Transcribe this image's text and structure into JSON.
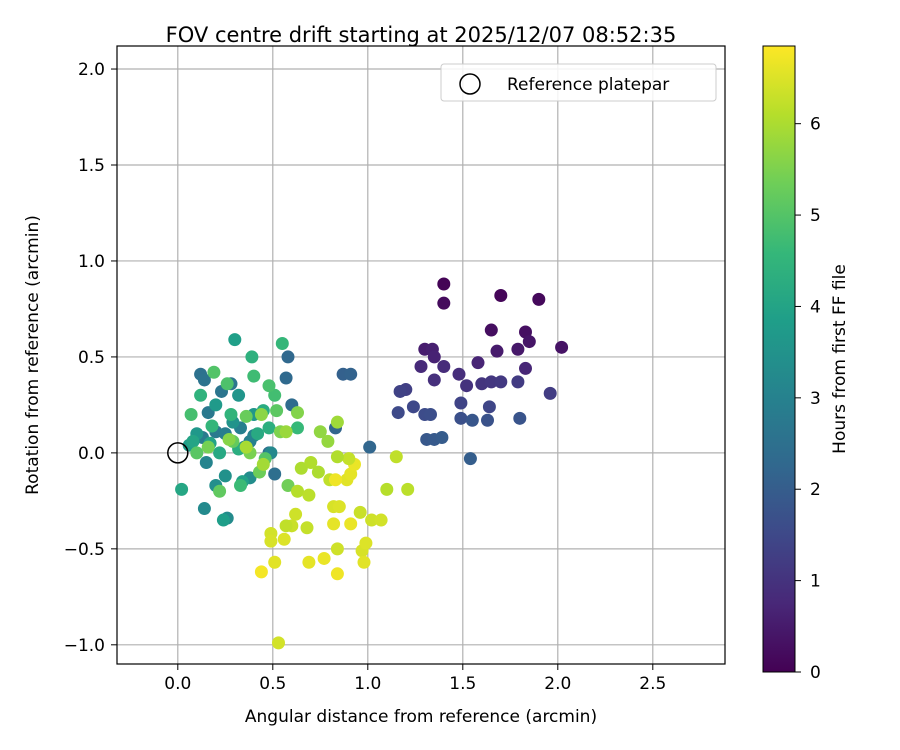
{
  "chart_data": {
    "type": "scatter",
    "title": "FOV centre drift starting at 2025/12/07 08:52:35",
    "xlabel": "Angular distance from reference (arcmin)",
    "ylabel": "Rotation from reference (arcmin)",
    "xlim": [
      -0.32,
      2.88
    ],
    "ylim": [
      -1.1,
      2.12
    ],
    "xticks": [
      0.0,
      0.5,
      1.0,
      1.5,
      2.0,
      2.5
    ],
    "xtick_labels": [
      "0.0",
      "0.5",
      "1.0",
      "1.5",
      "2.0",
      "2.5"
    ],
    "yticks": [
      -1.0,
      -0.5,
      0.0,
      0.5,
      1.0,
      1.5,
      2.0
    ],
    "ytick_labels": [
      "−1.0",
      "−0.5",
      "0.0",
      "0.5",
      "1.0",
      "1.5",
      "2.0"
    ],
    "grid": true,
    "legend": {
      "placement": "top-right",
      "entries": [
        "Reference platepar"
      ]
    },
    "reference_point": {
      "x": 0.0,
      "y": 0.0,
      "label": "Reference platepar"
    },
    "colorbar": {
      "label": "Hours from first FF file",
      "range": [
        0,
        6.85
      ],
      "ticks": [
        0,
        1,
        2,
        3,
        4,
        5,
        6
      ],
      "tick_labels": [
        "0",
        "1",
        "2",
        "3",
        "4",
        "5",
        "6"
      ],
      "colormap": [
        "#440154",
        "#482878",
        "#3e4989",
        "#31688e",
        "#26828e",
        "#1f9e89",
        "#35b779",
        "#6ece58",
        "#b5de2b",
        "#fde725"
      ]
    },
    "series": [
      {
        "name": "FOV centre drift",
        "points": [
          {
            "x": 1.4,
            "y": 0.88,
            "t": 0.05
          },
          {
            "x": 1.7,
            "y": 0.82,
            "t": 0.1
          },
          {
            "x": 1.9,
            "y": 0.8,
            "t": 0.15
          },
          {
            "x": 1.4,
            "y": 0.78,
            "t": 0.2
          },
          {
            "x": 1.65,
            "y": 0.64,
            "t": 0.25
          },
          {
            "x": 1.83,
            "y": 0.63,
            "t": 0.3
          },
          {
            "x": 2.02,
            "y": 0.55,
            "t": 0.35
          },
          {
            "x": 1.85,
            "y": 0.58,
            "t": 0.4
          },
          {
            "x": 1.79,
            "y": 0.54,
            "t": 0.45
          },
          {
            "x": 1.68,
            "y": 0.53,
            "t": 0.5
          },
          {
            "x": 1.3,
            "y": 0.54,
            "t": 0.55
          },
          {
            "x": 1.34,
            "y": 0.54,
            "t": 0.6
          },
          {
            "x": 1.35,
            "y": 0.5,
            "t": 0.65
          },
          {
            "x": 1.58,
            "y": 0.47,
            "t": 0.7
          },
          {
            "x": 1.83,
            "y": 0.44,
            "t": 0.75
          },
          {
            "x": 1.28,
            "y": 0.45,
            "t": 0.8
          },
          {
            "x": 1.4,
            "y": 0.45,
            "t": 0.85
          },
          {
            "x": 1.48,
            "y": 0.41,
            "t": 0.9
          },
          {
            "x": 1.35,
            "y": 0.38,
            "t": 0.95
          },
          {
            "x": 1.52,
            "y": 0.35,
            "t": 1.0
          },
          {
            "x": 1.6,
            "y": 0.36,
            "t": 1.05
          },
          {
            "x": 1.65,
            "y": 0.37,
            "t": 1.1
          },
          {
            "x": 1.7,
            "y": 0.37,
            "t": 1.15
          },
          {
            "x": 1.79,
            "y": 0.37,
            "t": 1.2
          },
          {
            "x": 1.96,
            "y": 0.31,
            "t": 1.25
          },
          {
            "x": 1.2,
            "y": 0.33,
            "t": 1.3
          },
          {
            "x": 1.17,
            "y": 0.32,
            "t": 1.35
          },
          {
            "x": 1.49,
            "y": 0.26,
            "t": 1.4
          },
          {
            "x": 1.64,
            "y": 0.24,
            "t": 1.45
          },
          {
            "x": 1.24,
            "y": 0.24,
            "t": 1.5
          },
          {
            "x": 1.16,
            "y": 0.21,
            "t": 1.55
          },
          {
            "x": 1.3,
            "y": 0.2,
            "t": 1.6
          },
          {
            "x": 1.33,
            "y": 0.2,
            "t": 1.65
          },
          {
            "x": 1.49,
            "y": 0.18,
            "t": 1.7
          },
          {
            "x": 1.63,
            "y": 0.17,
            "t": 1.75
          },
          {
            "x": 1.8,
            "y": 0.18,
            "t": 1.8
          },
          {
            "x": 1.55,
            "y": 0.17,
            "t": 1.85
          },
          {
            "x": 1.31,
            "y": 0.07,
            "t": 1.9
          },
          {
            "x": 1.35,
            "y": 0.07,
            "t": 1.95
          },
          {
            "x": 1.39,
            "y": 0.08,
            "t": 2.0
          },
          {
            "x": 1.54,
            "y": -0.03,
            "t": 2.05
          },
          {
            "x": 0.87,
            "y": 0.41,
            "t": 2.1
          },
          {
            "x": 0.91,
            "y": 0.41,
            "t": 2.15
          },
          {
            "x": 0.83,
            "y": 0.13,
            "t": 2.2
          },
          {
            "x": 1.01,
            "y": 0.03,
            "t": 2.25
          },
          {
            "x": 0.58,
            "y": 0.5,
            "t": 2.3
          },
          {
            "x": 0.57,
            "y": 0.39,
            "t": 2.35
          },
          {
            "x": 0.6,
            "y": 0.25,
            "t": 2.4
          },
          {
            "x": 0.48,
            "y": 0.0,
            "t": 2.45
          },
          {
            "x": 0.51,
            "y": -0.11,
            "t": 2.5
          },
          {
            "x": 0.12,
            "y": 0.41,
            "t": 2.55
          },
          {
            "x": 0.14,
            "y": 0.38,
            "t": 2.6
          },
          {
            "x": 0.23,
            "y": 0.32,
            "t": 2.65
          },
          {
            "x": 0.28,
            "y": 0.36,
            "t": 2.7
          },
          {
            "x": 0.16,
            "y": 0.21,
            "t": 2.75
          },
          {
            "x": 0.2,
            "y": 0.11,
            "t": 2.8
          },
          {
            "x": 0.13,
            "y": 0.08,
            "t": 2.85
          },
          {
            "x": 0.25,
            "y": 0.1,
            "t": 2.9
          },
          {
            "x": 0.33,
            "y": 0.13,
            "t": 2.95
          },
          {
            "x": 0.38,
            "y": 0.06,
            "t": 3.0
          },
          {
            "x": 0.4,
            "y": 0.09,
            "t": 3.05
          },
          {
            "x": 0.15,
            "y": -0.05,
            "t": 3.1
          },
          {
            "x": 0.35,
            "y": 0.03,
            "t": 3.15
          },
          {
            "x": 0.49,
            "y": 0.0,
            "t": 3.2
          },
          {
            "x": 0.14,
            "y": -0.29,
            "t": 3.25
          },
          {
            "x": 0.26,
            "y": -0.34,
            "t": 3.3
          },
          {
            "x": 0.38,
            "y": -0.13,
            "t": 3.35
          },
          {
            "x": 0.2,
            "y": -0.17,
            "t": 3.4
          },
          {
            "x": 0.25,
            "y": -0.12,
            "t": 3.45
          },
          {
            "x": 0.29,
            "y": 0.16,
            "t": 3.5
          },
          {
            "x": 0.32,
            "y": 0.3,
            "t": 3.55
          },
          {
            "x": 0.4,
            "y": 0.2,
            "t": 3.6
          },
          {
            "x": 0.1,
            "y": 0.1,
            "t": 3.65
          },
          {
            "x": 0.2,
            "y": 0.25,
            "t": 3.7
          },
          {
            "x": 0.06,
            "y": 0.04,
            "t": 3.75
          },
          {
            "x": 0.24,
            "y": -0.35,
            "t": 3.8
          },
          {
            "x": 0.3,
            "y": 0.59,
            "t": 3.85
          },
          {
            "x": 0.34,
            "y": -0.15,
            "t": 3.9
          },
          {
            "x": 0.17,
            "y": 0.05,
            "t": 3.95
          },
          {
            "x": 0.08,
            "y": 0.06,
            "t": 4.0
          },
          {
            "x": 0.02,
            "y": -0.19,
            "t": 4.05
          },
          {
            "x": 0.22,
            "y": 0.0,
            "t": 4.1
          },
          {
            "x": 0.42,
            "y": 0.1,
            "t": 4.15
          },
          {
            "x": 0.45,
            "y": 0.22,
            "t": 4.2
          },
          {
            "x": 0.32,
            "y": 0.02,
            "t": 4.25
          },
          {
            "x": 0.48,
            "y": 0.13,
            "t": 4.3
          },
          {
            "x": 0.39,
            "y": 0.5,
            "t": 4.35
          },
          {
            "x": 0.12,
            "y": 0.3,
            "t": 4.4
          },
          {
            "x": 0.28,
            "y": 0.2,
            "t": 4.45
          },
          {
            "x": 0.18,
            "y": 0.14,
            "t": 4.5
          },
          {
            "x": 0.55,
            "y": 0.57,
            "t": 4.55
          },
          {
            "x": 0.63,
            "y": 0.13,
            "t": 4.6
          },
          {
            "x": 0.33,
            "y": -0.17,
            "t": 4.65
          },
          {
            "x": 0.4,
            "y": 0.4,
            "t": 4.7
          },
          {
            "x": 0.51,
            "y": 0.3,
            "t": 4.75
          },
          {
            "x": 0.07,
            "y": 0.2,
            "t": 4.8
          },
          {
            "x": 0.48,
            "y": 0.35,
            "t": 4.85
          },
          {
            "x": 0.26,
            "y": 0.36,
            "t": 4.9
          },
          {
            "x": 0.19,
            "y": 0.42,
            "t": 4.95
          },
          {
            "x": 0.46,
            "y": -0.03,
            "t": 5.0
          },
          {
            "x": 0.1,
            "y": 0.0,
            "t": 5.05
          },
          {
            "x": 0.52,
            "y": 0.22,
            "t": 5.1
          },
          {
            "x": 0.22,
            "y": -0.2,
            "t": 5.15
          },
          {
            "x": 0.29,
            "y": 0.06,
            "t": 5.2
          },
          {
            "x": 0.36,
            "y": 0.19,
            "t": 5.25
          },
          {
            "x": 0.43,
            "y": -0.1,
            "t": 5.3
          },
          {
            "x": 0.58,
            "y": -0.17,
            "t": 5.35
          },
          {
            "x": 0.16,
            "y": 0.03,
            "t": 5.4
          },
          {
            "x": 0.38,
            "y": 0.0,
            "t": 5.45
          },
          {
            "x": 0.54,
            "y": 0.11,
            "t": 5.5
          },
          {
            "x": 0.63,
            "y": 0.21,
            "t": 5.55
          },
          {
            "x": 0.27,
            "y": 0.07,
            "t": 5.6
          },
          {
            "x": 0.44,
            "y": 0.2,
            "t": 5.65
          },
          {
            "x": 0.75,
            "y": 0.11,
            "t": 5.7
          },
          {
            "x": 0.79,
            "y": 0.06,
            "t": 5.75
          },
          {
            "x": 0.57,
            "y": 0.11,
            "t": 5.8
          },
          {
            "x": 0.84,
            "y": 0.16,
            "t": 5.85
          },
          {
            "x": 0.45,
            "y": -0.06,
            "t": 5.9
          },
          {
            "x": 0.36,
            "y": 0.03,
            "t": 5.95
          },
          {
            "x": 0.65,
            "y": -0.08,
            "t": 6.0
          },
          {
            "x": 0.7,
            "y": -0.05,
            "t": 6.05
          },
          {
            "x": 0.63,
            "y": -0.2,
            "t": 6.1
          },
          {
            "x": 0.69,
            "y": -0.22,
            "t": 6.15
          },
          {
            "x": 0.8,
            "y": -0.14,
            "t": 6.2
          },
          {
            "x": 0.68,
            "y": -0.39,
            "t": 6.25
          },
          {
            "x": 0.6,
            "y": -0.38,
            "t": 6.3
          },
          {
            "x": 0.62,
            "y": -0.32,
            "t": 6.35
          },
          {
            "x": 0.49,
            "y": -0.42,
            "t": 6.4
          },
          {
            "x": 0.49,
            "y": -0.46,
            "t": 6.45
          },
          {
            "x": 0.56,
            "y": -0.45,
            "t": 6.5
          },
          {
            "x": 0.51,
            "y": -0.57,
            "t": 6.55
          },
          {
            "x": 0.69,
            "y": -0.57,
            "t": 6.6
          },
          {
            "x": 0.77,
            "y": -0.55,
            "t": 6.65
          },
          {
            "x": 0.84,
            "y": -0.63,
            "t": 6.7
          },
          {
            "x": 0.53,
            "y": -0.99,
            "t": 6.4
          },
          {
            "x": 0.84,
            "y": -0.5,
            "t": 6.35
          },
          {
            "x": 0.97,
            "y": -0.51,
            "t": 6.45
          },
          {
            "x": 0.99,
            "y": -0.47,
            "t": 6.5
          },
          {
            "x": 0.98,
            "y": -0.57,
            "t": 6.55
          },
          {
            "x": 0.82,
            "y": -0.37,
            "t": 6.6
          },
          {
            "x": 0.91,
            "y": -0.37,
            "t": 6.65
          },
          {
            "x": 0.96,
            "y": -0.31,
            "t": 6.3
          },
          {
            "x": 1.02,
            "y": -0.35,
            "t": 6.35
          },
          {
            "x": 1.07,
            "y": -0.35,
            "t": 6.4
          },
          {
            "x": 0.82,
            "y": -0.28,
            "t": 6.45
          },
          {
            "x": 0.85,
            "y": -0.28,
            "t": 6.5
          },
          {
            "x": 0.89,
            "y": -0.14,
            "t": 6.55
          },
          {
            "x": 0.91,
            "y": -0.11,
            "t": 6.6
          },
          {
            "x": 0.93,
            "y": -0.06,
            "t": 6.65
          },
          {
            "x": 0.83,
            "y": -0.14,
            "t": 6.7
          },
          {
            "x": 1.1,
            "y": -0.19,
            "t": 6.1
          },
          {
            "x": 1.21,
            "y": -0.19,
            "t": 6.15
          },
          {
            "x": 1.15,
            "y": -0.02,
            "t": 6.2
          },
          {
            "x": 0.9,
            "y": -0.03,
            "t": 6.25
          },
          {
            "x": 0.84,
            "y": -0.02,
            "t": 6.05
          },
          {
            "x": 0.74,
            "y": -0.1,
            "t": 6.0
          },
          {
            "x": 0.44,
            "y": -0.62,
            "t": 6.75
          },
          {
            "x": 0.57,
            "y": -0.38,
            "t": 6.2
          }
        ]
      }
    ]
  }
}
